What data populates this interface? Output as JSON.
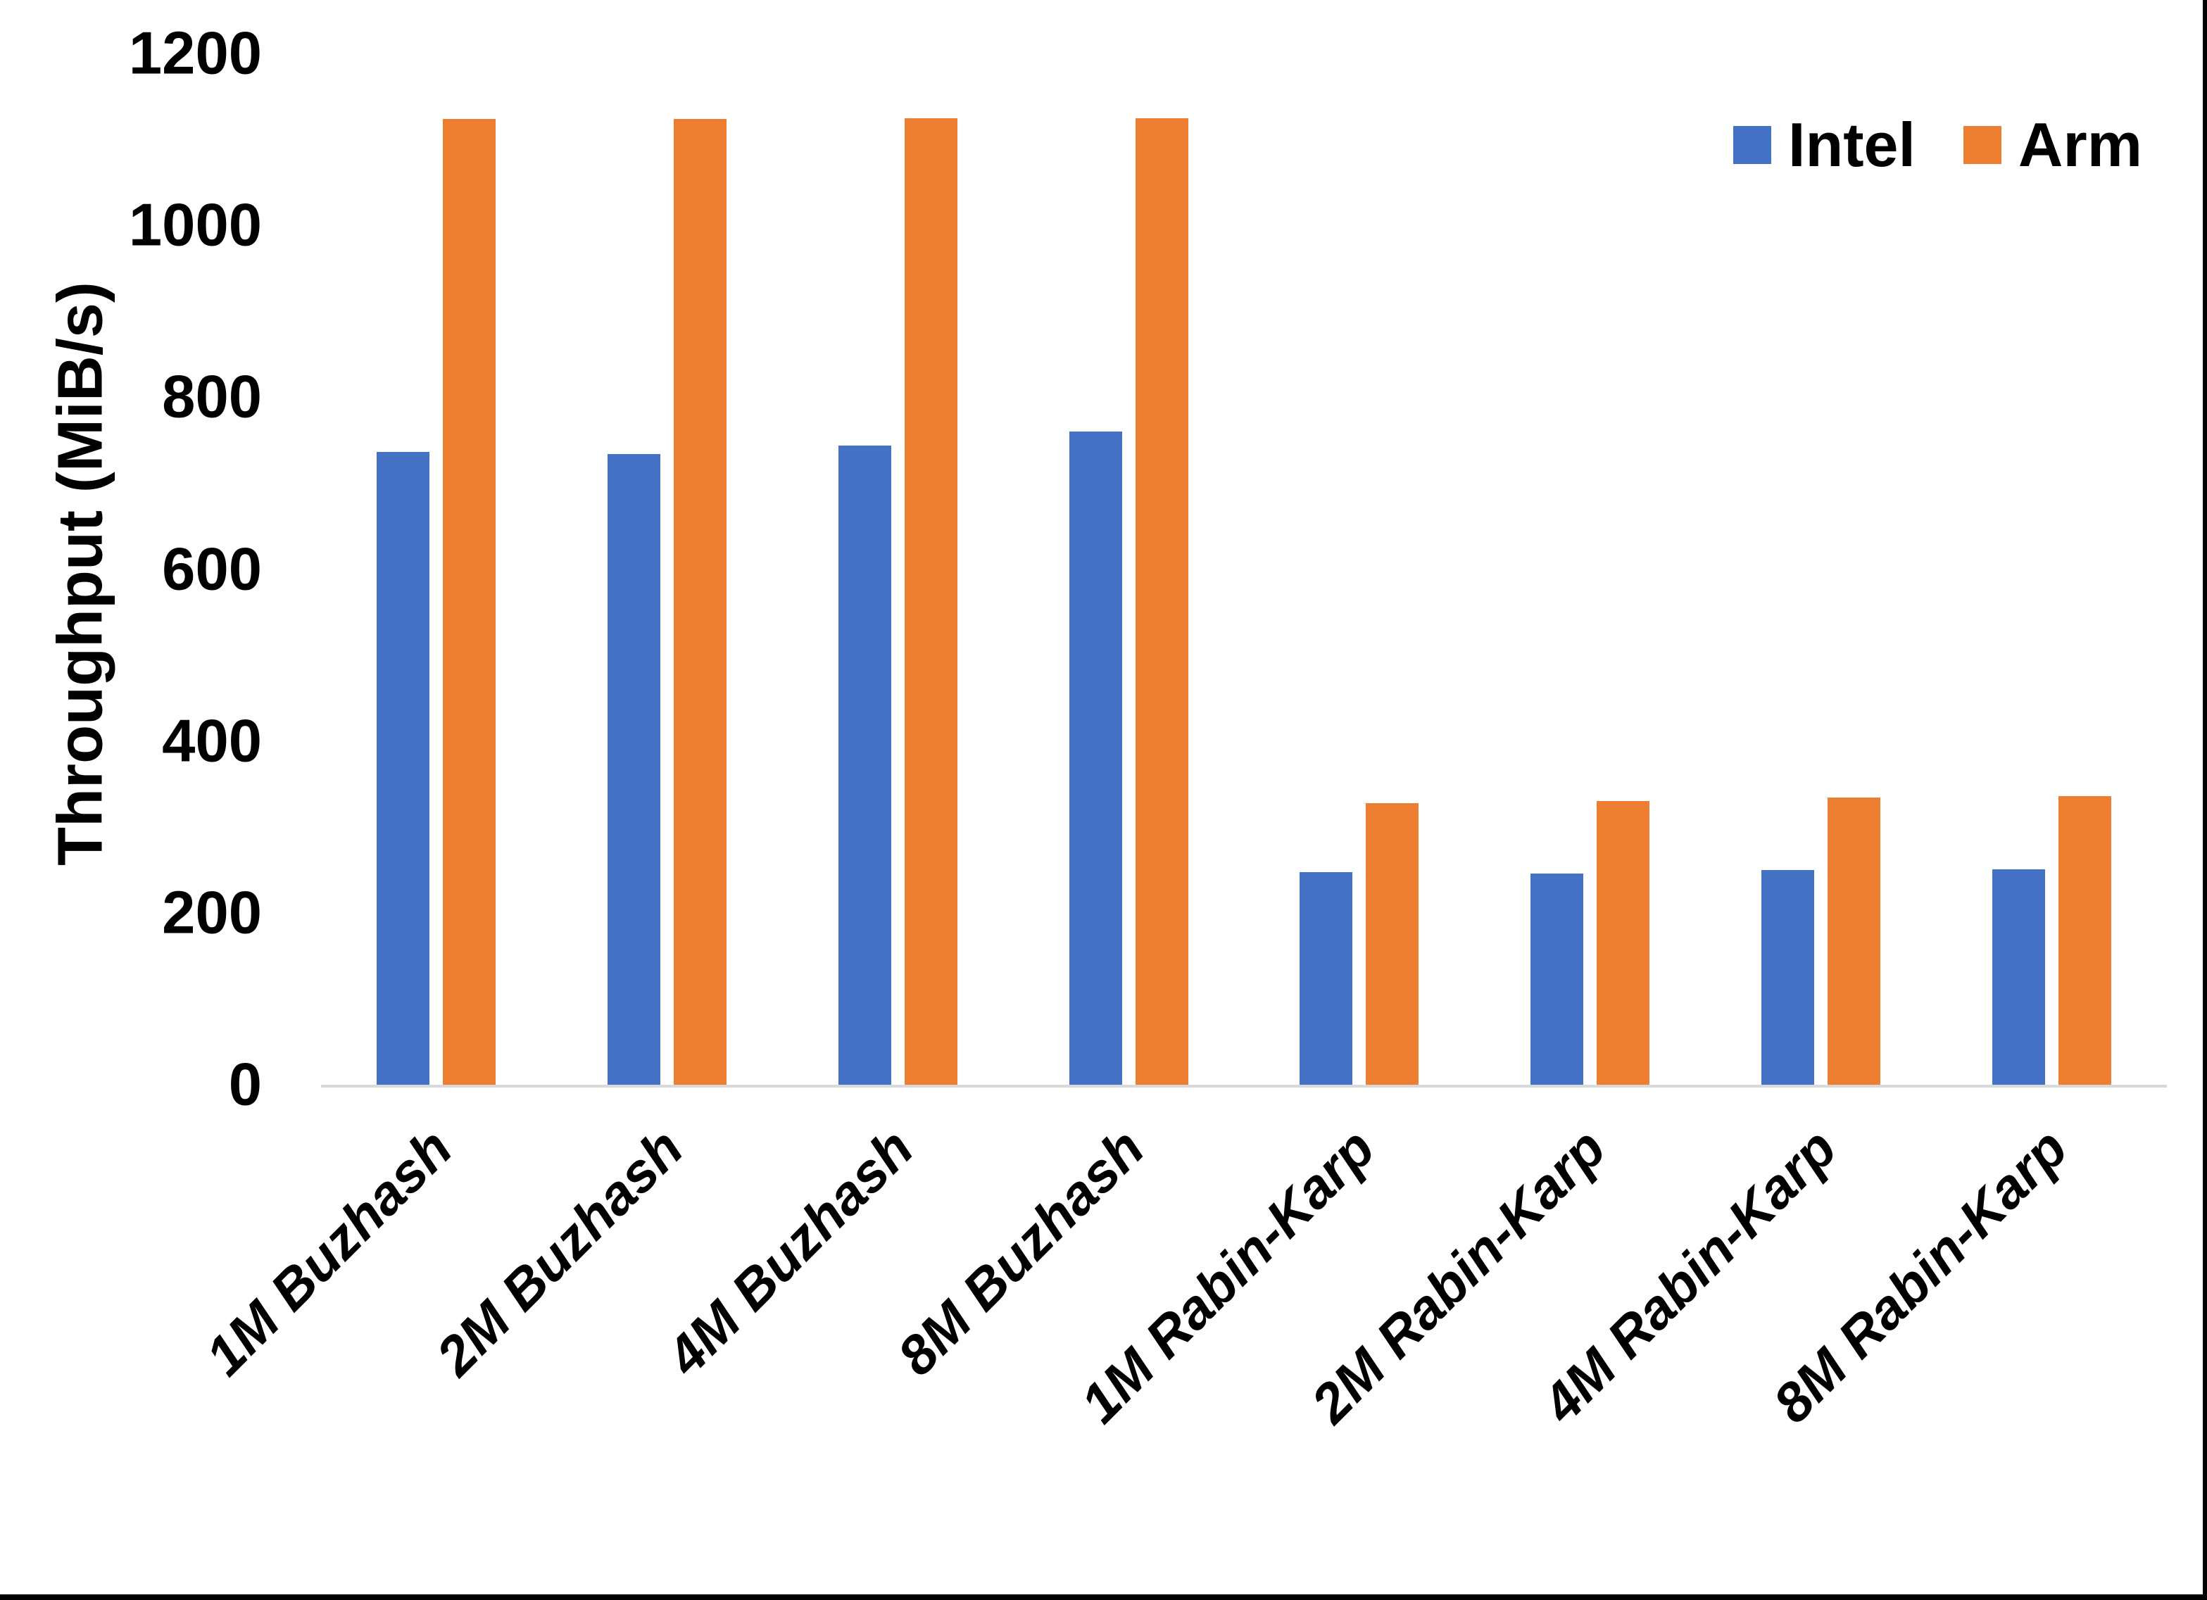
{
  "chart_data": {
    "type": "bar",
    "title": "",
    "xlabel": "",
    "ylabel": "Throughput (MiB/s)",
    "ylim": [
      0,
      1200
    ],
    "yticks": [
      0,
      200,
      400,
      600,
      800,
      1000,
      1200
    ],
    "grid": false,
    "legend_position": "top-right",
    "categories": [
      "1M Buzhash",
      "2M Buzhash",
      "4M Buzhash",
      "8M Buzhash",
      "1M Rabin-Karp",
      "2M Rabin-Karp",
      "4M Rabin-Karp",
      "8M Rabin-Karp"
    ],
    "series": [
      {
        "name": "Intel",
        "color": "#4472C4",
        "values": [
          736,
          734,
          744,
          760,
          247,
          246,
          250,
          251
        ]
      },
      {
        "name": "Arm",
        "color": "#ED7D31",
        "values": [
          1124,
          1124,
          1125,
          1125,
          328,
          330,
          334,
          336
        ]
      }
    ]
  },
  "colors": {
    "axis_line": "#d9d9d9",
    "text": "#000000",
    "background": "#ffffff",
    "frame_border": "#000000"
  }
}
